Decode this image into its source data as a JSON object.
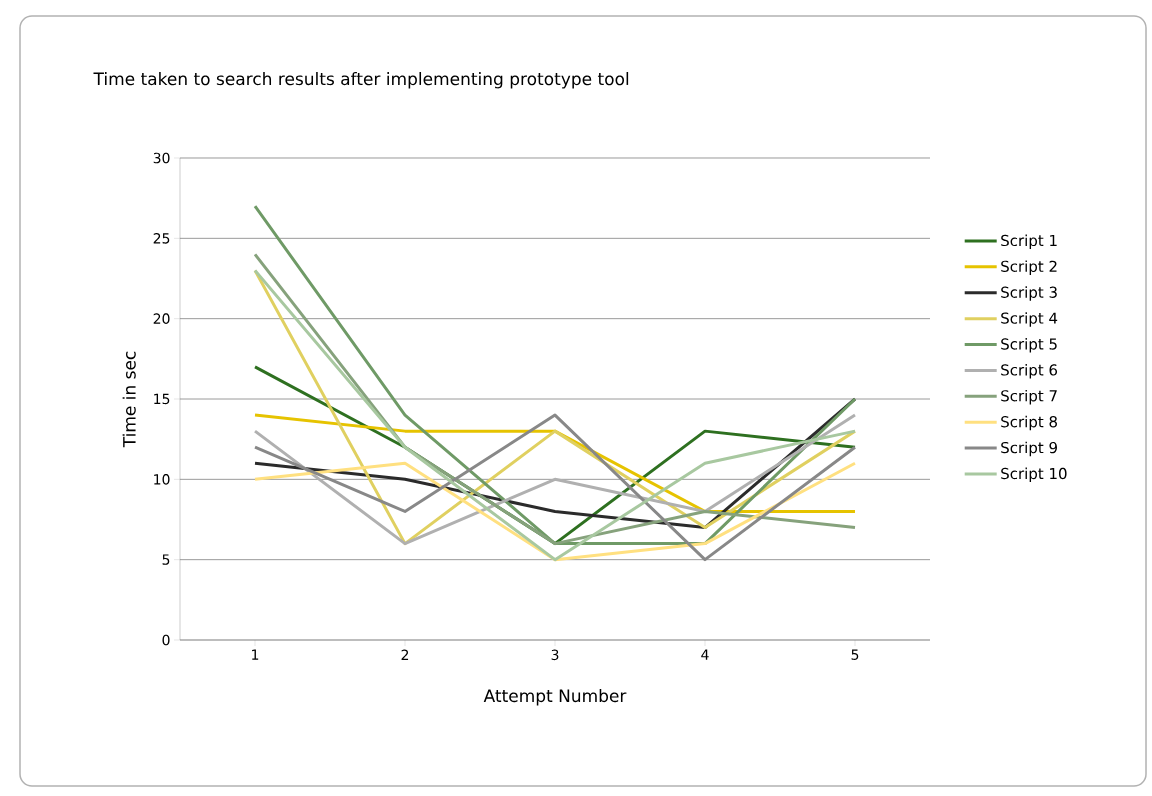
{
  "chart_data": {
    "type": "line",
    "title": "Time taken to search results after implementing prototype tool",
    "xlabel": "Attempt Number",
    "ylabel": "Time in sec",
    "categories": [
      "1",
      "2",
      "3",
      "4",
      "5"
    ],
    "series": [
      {
        "name": "Script 1",
        "color": "#2e7020",
        "values": [
          17,
          12,
          6,
          13,
          12
        ]
      },
      {
        "name": "Script 2",
        "color": "#e6c300",
        "values": [
          14,
          13,
          13,
          8,
          8
        ]
      },
      {
        "name": "Script 3",
        "color": "#2b2b2b",
        "values": [
          11,
          10,
          8,
          7,
          15
        ]
      },
      {
        "name": "Script 4",
        "color": "#e0d060",
        "values": [
          23,
          6,
          13,
          7,
          13
        ]
      },
      {
        "name": "Script 5",
        "color": "#6f9a66",
        "values": [
          27,
          14,
          6,
          6,
          15
        ]
      },
      {
        "name": "Script 6",
        "color": "#b0b0b0",
        "values": [
          13,
          6,
          10,
          8,
          14
        ]
      },
      {
        "name": "Script 7",
        "color": "#86a27c",
        "values": [
          24,
          12,
          6,
          8,
          7
        ]
      },
      {
        "name": "Script 8",
        "color": "#ffe080",
        "values": [
          10,
          11,
          5,
          6,
          11
        ]
      },
      {
        "name": "Script 9",
        "color": "#888888",
        "values": [
          12,
          8,
          14,
          5,
          12
        ]
      },
      {
        "name": "Script 10",
        "color": "#a8c8a0",
        "values": [
          23,
          12,
          5,
          11,
          13
        ]
      }
    ],
    "ylim": [
      0,
      30
    ],
    "yticks": [
      0,
      5,
      10,
      15,
      20,
      25,
      30
    ],
    "grid": "y",
    "legend": "right",
    "marker": "none",
    "line_style": "solid"
  }
}
